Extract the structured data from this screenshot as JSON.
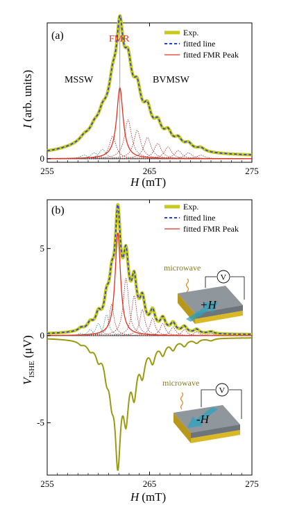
{
  "chart_data": [
    {
      "type": "line",
      "panel_label": "(a)",
      "xlabel_var": "H",
      "xlabel_unit": "(mT)",
      "ylabel_var": "I",
      "ylabel_unit": "(arb. units)",
      "xlim": [
        255,
        275
      ],
      "ylim": [
        -0.03,
        1.15
      ],
      "xticks": [
        255,
        265,
        275
      ],
      "yticks": [
        0
      ],
      "annotations": {
        "fmr": "FMR",
        "mssw": "MSSW",
        "bvmsw": "BVMSW"
      },
      "vline_x": 262.1,
      "legend": {
        "position": "top-right",
        "entries": [
          {
            "label": "Exp.",
            "color": "#c8c81e",
            "style": "thick-solid"
          },
          {
            "label": "fitted line",
            "color": "#1f3fd6",
            "style": "dashed"
          },
          {
            "label": "fitted FMR Peak",
            "color": "#e0301e",
            "style": "solid"
          }
        ]
      },
      "fmr_peak": {
        "center": 262.1,
        "amplitude": 0.6,
        "hwhm": 0.38
      },
      "sub_peaks": [
        {
          "center": 258.6,
          "amplitude": 0.03,
          "hwhm": 0.45,
          "color": "#1e8a8a"
        },
        {
          "center": 259.6,
          "amplitude": 0.05,
          "hwhm": 0.42,
          "color": "#1e8a8a"
        },
        {
          "center": 260.4,
          "amplitude": 0.08,
          "hwhm": 0.4,
          "color": "#1e8a8a"
        },
        {
          "center": 261.4,
          "amplitude": 0.19,
          "hwhm": 0.4,
          "color": "#a02020"
        },
        {
          "center": 262.9,
          "amplitude": 0.33,
          "hwhm": 0.42,
          "color": "#a02020"
        },
        {
          "center": 263.8,
          "amplitude": 0.24,
          "hwhm": 0.42,
          "color": "#a02020"
        },
        {
          "center": 264.8,
          "amplitude": 0.18,
          "hwhm": 0.42,
          "color": "#a02020"
        },
        {
          "center": 265.8,
          "amplitude": 0.13,
          "hwhm": 0.42,
          "color": "#a02020"
        },
        {
          "center": 266.8,
          "amplitude": 0.1,
          "hwhm": 0.42,
          "color": "#a02020"
        },
        {
          "center": 267.8,
          "amplitude": 0.07,
          "hwhm": 0.42,
          "color": "#a02020"
        },
        {
          "center": 268.8,
          "amplitude": 0.05,
          "hwhm": 0.42,
          "color": "#a02020"
        },
        {
          "center": 270.0,
          "amplitude": 0.03,
          "hwhm": 0.45,
          "color": "#a02020"
        }
      ],
      "background": {
        "center": 262.1,
        "amplitude": 0.45,
        "hwhm": 2.4,
        "offset": 0.015
      }
    },
    {
      "type": "line",
      "panel_label": "(b)",
      "xlabel_var": "H",
      "xlabel_unit": "(mT)",
      "ylabel_var": "V",
      "ylabel_sub": "ISHE",
      "ylabel_unit": "(μV)",
      "xlim": [
        255,
        275
      ],
      "ylim": [
        -8.0,
        7.8
      ],
      "xticks": [
        255,
        265,
        275
      ],
      "yticks": [
        5,
        0,
        -5
      ],
      "legend": {
        "position": "top-right",
        "entries": [
          {
            "label": "Exp.",
            "color": "#c8c81e",
            "style": "thick-solid"
          },
          {
            "label": "fitted line",
            "color": "#1f3fd6",
            "style": "dashed"
          },
          {
            "label": "fitted FMR Peak",
            "color": "#e0301e",
            "style": "solid"
          }
        ]
      },
      "insets": [
        {
          "microwave_label": "microwave",
          "field_label": "+H",
          "meter_label": "V"
        },
        {
          "microwave_label": "microwave",
          "field_label": "-H",
          "meter_label": "V"
        }
      ],
      "fmr_peak": {
        "center": 261.9,
        "amplitude": 5.9,
        "hwhm": 0.32
      },
      "sub_peaks": [
        {
          "center": 258.3,
          "amplitude": 0.15,
          "hwhm": 0.3,
          "color": "#1e8a8a"
        },
        {
          "center": 259.2,
          "amplitude": 0.35,
          "hwhm": 0.3,
          "color": "#1e8a8a"
        },
        {
          "center": 260.0,
          "amplitude": 0.7,
          "hwhm": 0.3,
          "color": "#1e8a8a"
        },
        {
          "center": 260.8,
          "amplitude": 1.2,
          "hwhm": 0.28,
          "color": "#1e8a8a"
        },
        {
          "center": 261.3,
          "amplitude": 1.8,
          "hwhm": 0.28,
          "color": "#a02020"
        },
        {
          "center": 262.7,
          "amplitude": 3.3,
          "hwhm": 0.32,
          "color": "#a02020"
        },
        {
          "center": 263.5,
          "amplitude": 2.3,
          "hwhm": 0.3,
          "color": "#a02020"
        },
        {
          "center": 264.3,
          "amplitude": 1.5,
          "hwhm": 0.3,
          "color": "#a02020"
        },
        {
          "center": 265.3,
          "amplitude": 1.0,
          "hwhm": 0.3,
          "color": "#a02020"
        },
        {
          "center": 266.3,
          "amplitude": 0.7,
          "hwhm": 0.3,
          "color": "#a02020"
        },
        {
          "center": 267.3,
          "amplitude": 0.5,
          "hwhm": 0.3,
          "color": "#a02020"
        },
        {
          "center": 268.4,
          "amplitude": 0.35,
          "hwhm": 0.3,
          "color": "#a02020"
        },
        {
          "center": 269.6,
          "amplitude": 0.22,
          "hwhm": 0.3,
          "color": "#a02020"
        },
        {
          "center": 271.0,
          "amplitude": 0.12,
          "hwhm": 0.35,
          "color": "#a02020"
        }
      ],
      "background": {
        "center": 262.0,
        "amplitude": 0.6,
        "hwhm": 2.0,
        "offset": 0.05
      },
      "negative_scale": -1.02
    }
  ]
}
